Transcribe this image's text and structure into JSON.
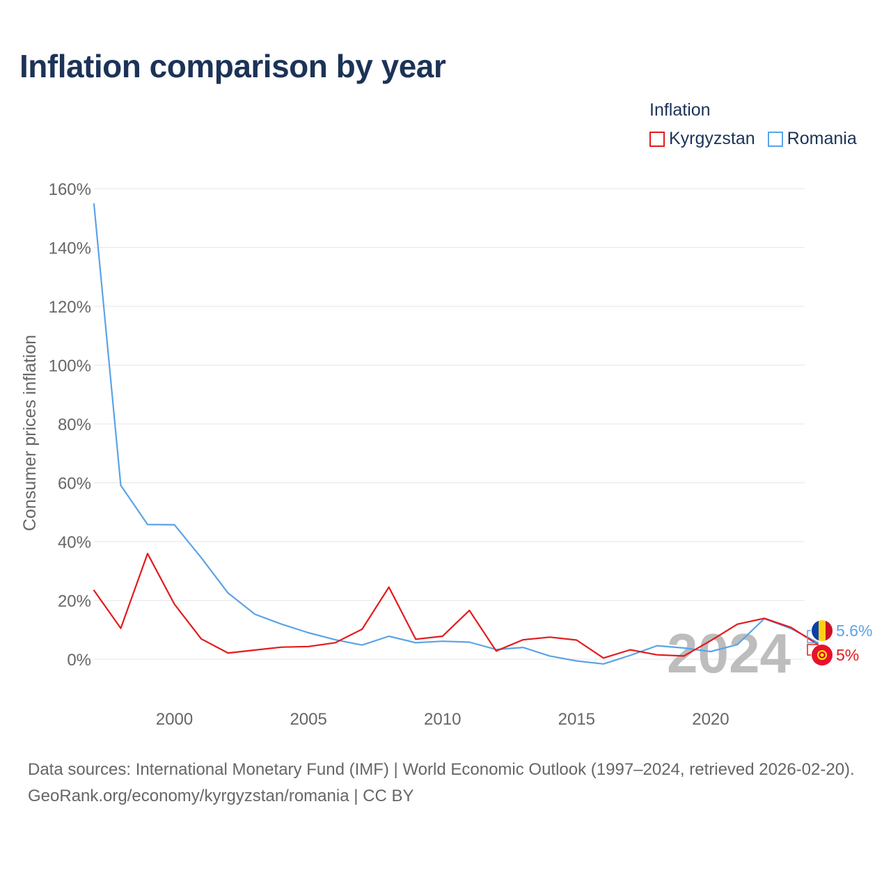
{
  "chart_data": {
    "type": "line",
    "title": "Inflation comparison by year",
    "legend_title": "Inflation",
    "legend_position": "top-right",
    "ylabel": "Consumer prices inflation",
    "xlabel": "",
    "xlim": [
      1997,
      2024
    ],
    "ylim": [
      -15,
      160
    ],
    "x_ticks": [
      2000,
      2005,
      2010,
      2015,
      2020
    ],
    "y_ticks": [
      0,
      20,
      40,
      60,
      80,
      100,
      120,
      140,
      160
    ],
    "y_tick_labels": [
      "0%",
      "20%",
      "40%",
      "60%",
      "80%",
      "100%",
      "120%",
      "140%",
      "160%"
    ],
    "x_tick_labels": [
      "2000",
      "2005",
      "2010",
      "2015",
      "2020"
    ],
    "grid": true,
    "year_watermark": "2024",
    "x": [
      1997,
      1998,
      1999,
      2000,
      2001,
      2002,
      2003,
      2004,
      2005,
      2006,
      2007,
      2008,
      2009,
      2010,
      2011,
      2012,
      2013,
      2014,
      2015,
      2016,
      2017,
      2018,
      2019,
      2020,
      2021,
      2022,
      2023,
      2024
    ],
    "series": [
      {
        "name": "Kyrgyzstan",
        "color": "#e31a1c",
        "end_label": "5%",
        "values": [
          23.4,
          10.5,
          35.9,
          18.7,
          6.9,
          2.1,
          3.1,
          4.1,
          4.3,
          5.6,
          10.2,
          24.5,
          6.8,
          7.8,
          16.6,
          2.8,
          6.6,
          7.5,
          6.5,
          0.4,
          3.2,
          1.5,
          1.1,
          6.3,
          11.9,
          13.9,
          10.8,
          5.0
        ]
      },
      {
        "name": "Romania",
        "color": "#5ba3e6",
        "end_label": "5.6%",
        "values": [
          154.8,
          59.1,
          45.8,
          45.7,
          34.5,
          22.5,
          15.3,
          11.9,
          9.0,
          6.6,
          4.8,
          7.8,
          5.6,
          6.1,
          5.8,
          3.3,
          4.0,
          1.1,
          -0.6,
          -1.6,
          1.3,
          4.6,
          3.8,
          2.6,
          5.0,
          13.8,
          10.4,
          5.6
        ]
      }
    ]
  },
  "footer": {
    "sources": "Data sources: International Monetary Fund (IMF) | World Economic Outlook (1997–2024, retrieved 2026-02-20).",
    "credit": "GeoRank.org/economy/kyrgyzstan/romania | CC BY"
  }
}
